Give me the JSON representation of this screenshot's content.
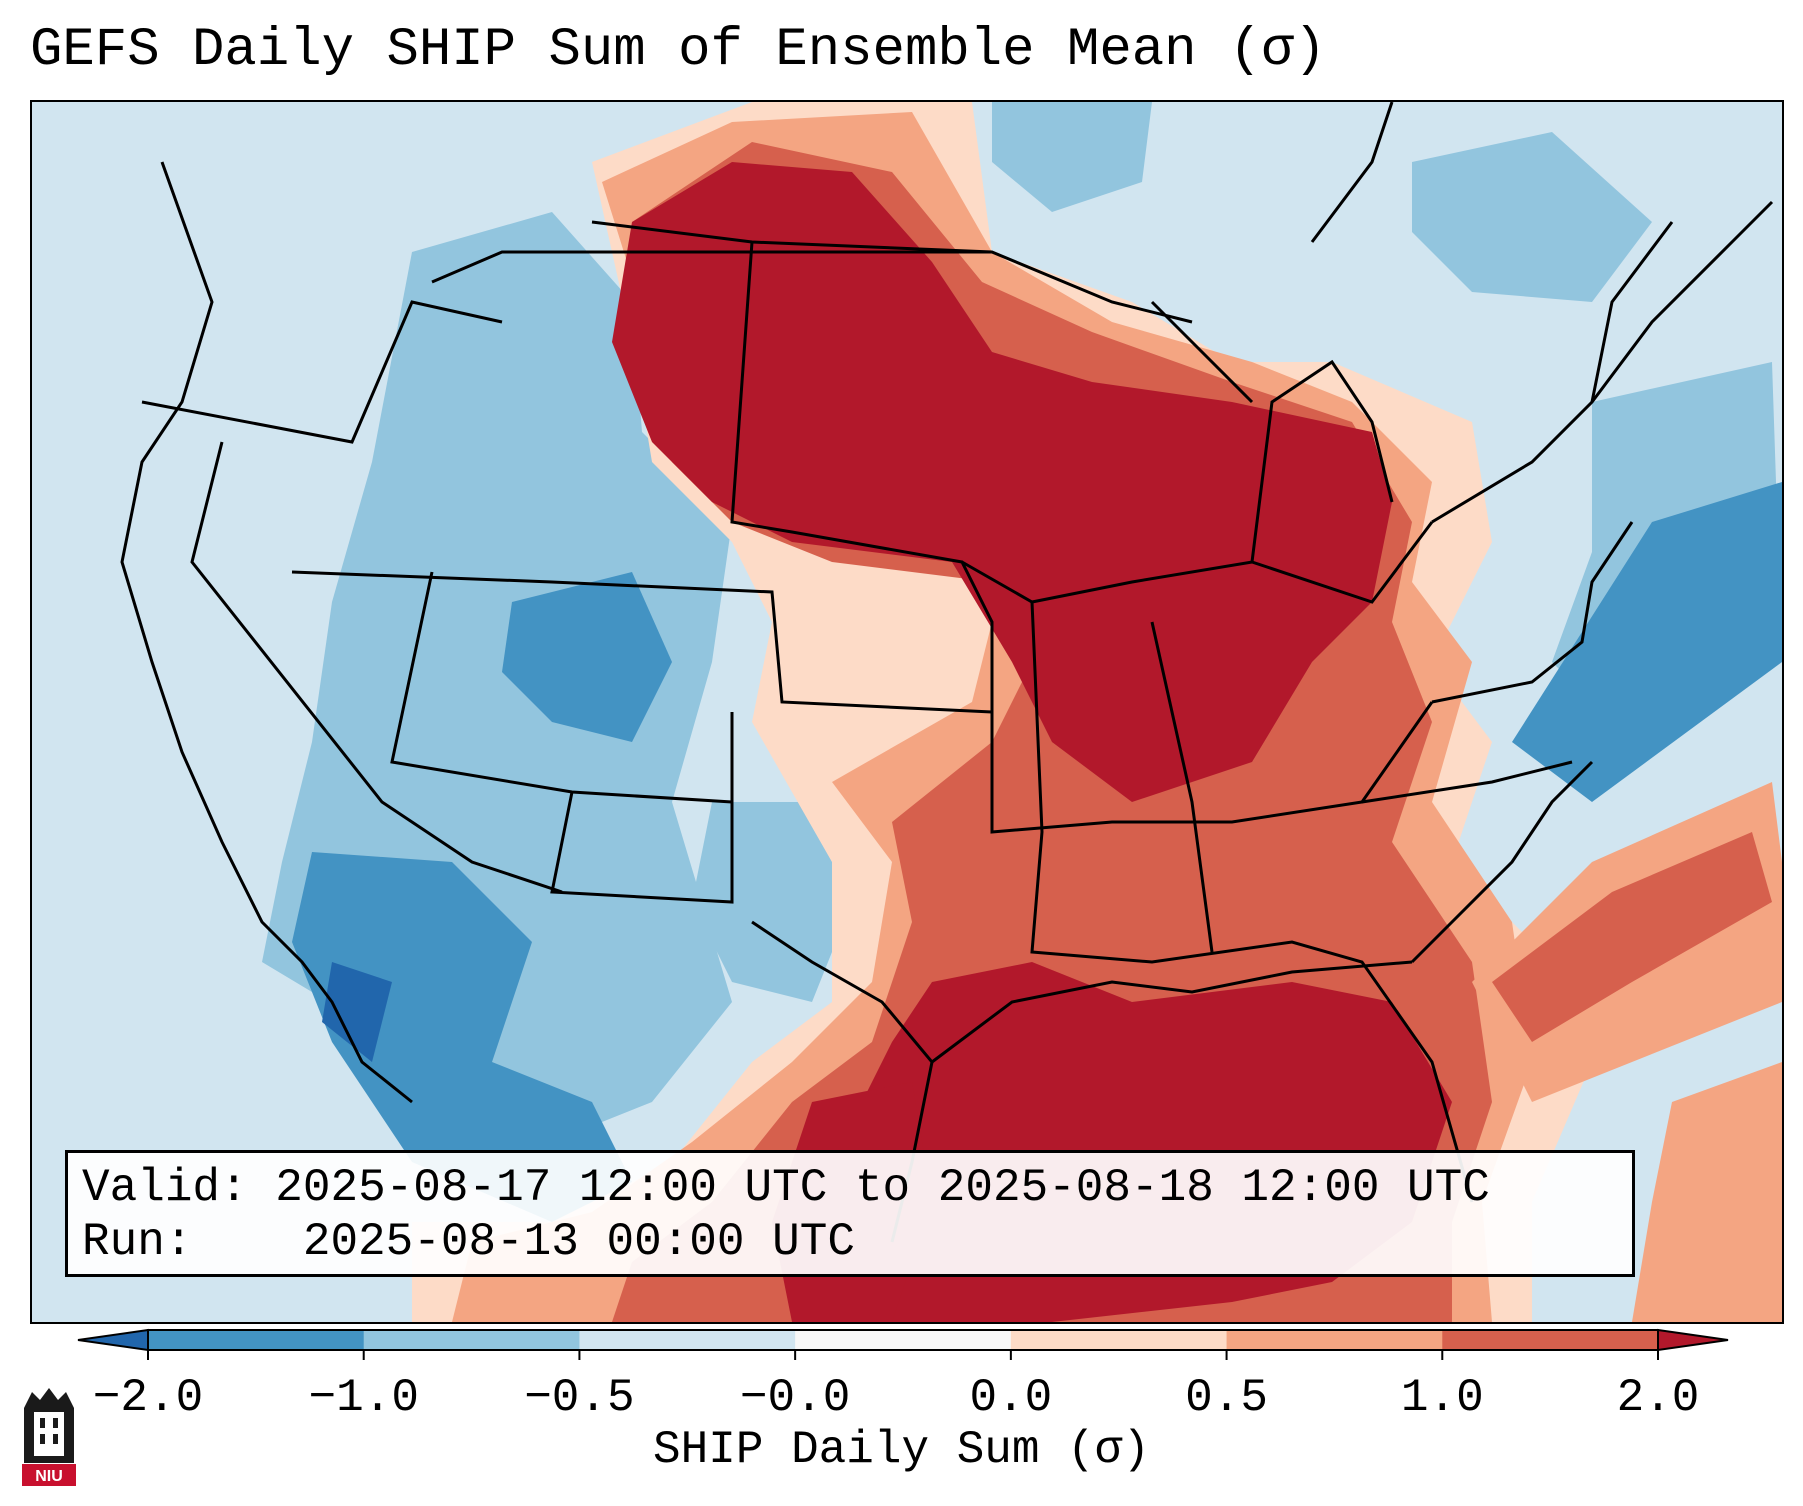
{
  "title": "GEFS Daily SHIP Sum of Ensemble Mean (σ)",
  "info": {
    "valid_label": "Valid:",
    "valid_value": "2025-08-17 12:00 UTC to 2025-08-18 12:00 UTC",
    "run_label": "Run:",
    "run_value": "2025-08-13 00:00 UTC"
  },
  "colorbar": {
    "label": "SHIP Daily Sum (σ)",
    "ticks": [
      "−2.0",
      "−1.0",
      "−0.5",
      "−0.0",
      "0.0",
      "0.5",
      "1.0",
      "2.0"
    ],
    "bins": [
      {
        "range": "< -2.0",
        "color": "#2166ac"
      },
      {
        "range": "-2.0 to -1.0",
        "color": "#4393c3"
      },
      {
        "range": "-1.0 to -0.5",
        "color": "#92c5de"
      },
      {
        "range": "-0.5 to 0.0",
        "color": "#d1e5f0"
      },
      {
        "range": "0.0",
        "color": "#f7f7f7"
      },
      {
        "range": "0.0 to 0.5",
        "color": "#fddbc7"
      },
      {
        "range": "0.5 to 1.0",
        "color": "#f4a582"
      },
      {
        "range": "1.0 to 2.0",
        "color": "#d6604d"
      },
      {
        "range": "> 2.0",
        "color": "#b2182b"
      }
    ]
  },
  "logo": {
    "text": "NIU",
    "color": "#c8102e"
  }
}
